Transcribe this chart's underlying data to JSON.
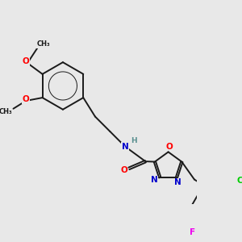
{
  "bg_color": "#e8e8e8",
  "bond_color": "#1a1a1a",
  "bond_width": 1.4,
  "atom_colors": {
    "O": "#ff0000",
    "N": "#0000cc",
    "Cl": "#00cc00",
    "F": "#ee00ee",
    "H": "#5a9090",
    "C": "#1a1a1a"
  },
  "font_size": 7.5,
  "methoxy_label": "O",
  "methyl_label": "CH₃"
}
